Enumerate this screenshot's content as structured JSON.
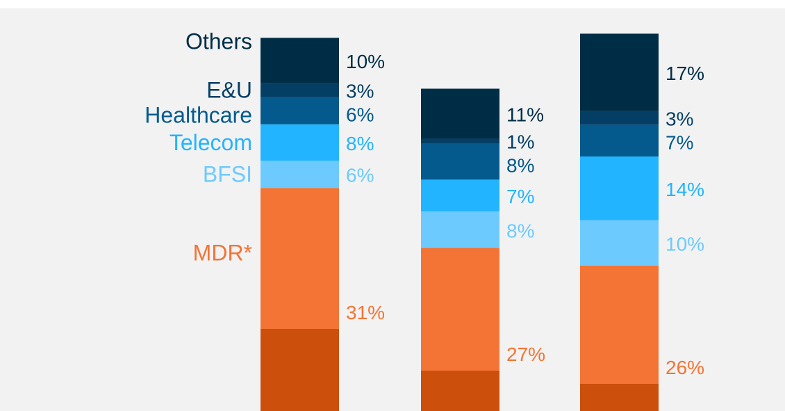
{
  "chart_data": {
    "type": "bar",
    "stacked": true,
    "categories": [
      "",
      "",
      ""
    ],
    "series_order_bottom_to_top": [
      "",
      "MDR*",
      "BFSI",
      "Telecom",
      "Healthcare",
      "E&U",
      "Others"
    ],
    "series": [
      {
        "name": "",
        "color": "#cc4f0b",
        "values": [
          null,
          null,
          null
        ]
      },
      {
        "name": "MDR*",
        "color": "#f37435",
        "values": [
          31,
          27,
          26
        ],
        "labels": [
          "31%",
          "27%",
          "26%"
        ]
      },
      {
        "name": "BFSI",
        "color": "#6dcaff",
        "values": [
          6,
          8,
          10
        ],
        "labels": [
          "6%",
          "8%",
          "10%"
        ]
      },
      {
        "name": "Telecom",
        "color": "#23b4ff",
        "values": [
          8,
          7,
          14
        ],
        "labels": [
          "8%",
          "7%",
          "14%"
        ]
      },
      {
        "name": "Healthcare",
        "color": "#045a8d",
        "values": [
          6,
          8,
          7
        ],
        "labels": [
          "6%",
          "8%",
          "7%"
        ]
      },
      {
        "name": "E&U",
        "color": "#043e64",
        "values": [
          3,
          1,
          3
        ],
        "labels": [
          "3%",
          "1%",
          "3%"
        ]
      },
      {
        "name": "Others",
        "color": "#002d46",
        "values": [
          10,
          11,
          17
        ],
        "labels": [
          "10%",
          "11%",
          "17%"
        ]
      }
    ],
    "legend": "left"
  }
}
